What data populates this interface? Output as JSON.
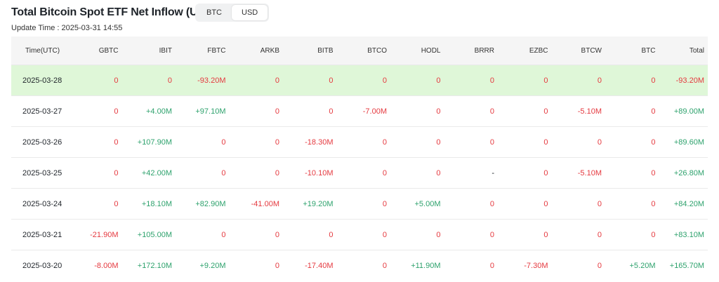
{
  "header": {
    "title": "Total Bitcoin Spot ETF Net Inflow (USD)",
    "toggle": [
      "BTC",
      "USD"
    ],
    "update_time": "Update Time : 2025-03-31 14:55"
  },
  "table": {
    "columns": [
      "Time(UTC)",
      "GBTC",
      "IBIT",
      "FBTC",
      "ARKB",
      "BITB",
      "BTCO",
      "HODL",
      "BRRR",
      "EZBC",
      "BTCW",
      "BTC",
      "Total"
    ],
    "rows": [
      [
        "2025-03-28",
        "0",
        "0",
        "-93.20M",
        "0",
        "0",
        "0",
        "0",
        "0",
        "0",
        "0",
        "0",
        "-93.20M"
      ],
      [
        "2025-03-27",
        "0",
        "+4.00M",
        "+97.10M",
        "0",
        "0",
        "-7.00M",
        "0",
        "0",
        "0",
        "-5.10M",
        "0",
        "+89.00M"
      ],
      [
        "2025-03-26",
        "0",
        "+107.90M",
        "0",
        "0",
        "-18.30M",
        "0",
        "0",
        "0",
        "0",
        "0",
        "0",
        "+89.60M"
      ],
      [
        "2025-03-25",
        "0",
        "+42.00M",
        "0",
        "0",
        "-10.10M",
        "0",
        "0",
        "-",
        "0",
        "-5.10M",
        "0",
        "+26.80M"
      ],
      [
        "2025-03-24",
        "0",
        "+18.10M",
        "+82.90M",
        "-41.00M",
        "+19.20M",
        "0",
        "+5.00M",
        "0",
        "0",
        "0",
        "0",
        "+84.20M"
      ],
      [
        "2025-03-21",
        "-21.90M",
        "+105.00M",
        "0",
        "0",
        "0",
        "0",
        "0",
        "0",
        "0",
        "0",
        "0",
        "+83.10M"
      ],
      [
        "2025-03-20",
        "-8.00M",
        "+172.10M",
        "+9.20M",
        "0",
        "-17.40M",
        "0",
        "+11.90M",
        "0",
        "-7.30M",
        "0",
        "+5.20M",
        "+165.70M"
      ]
    ]
  }
}
